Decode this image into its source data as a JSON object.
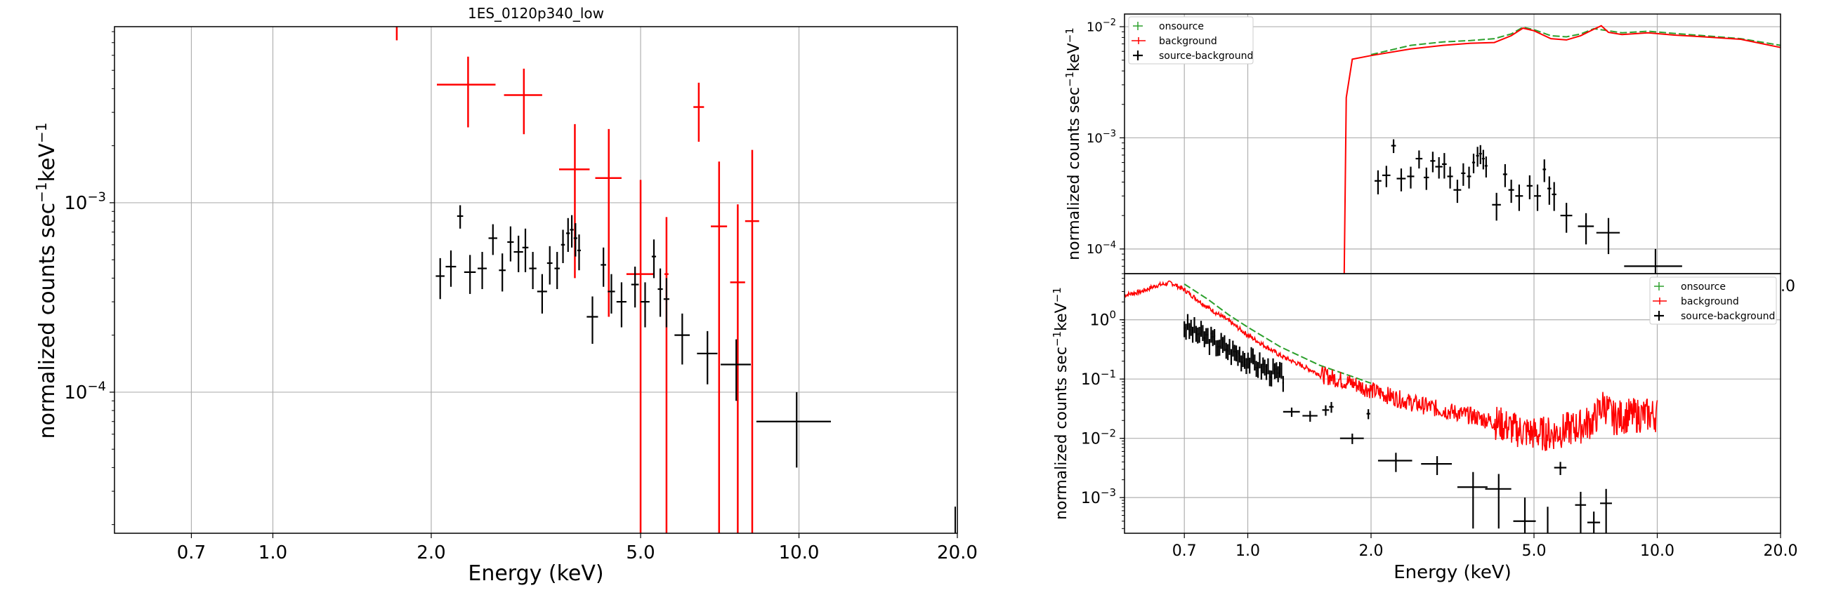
{
  "colors": {
    "source": "#000000",
    "background": "#ff0000",
    "onsource": "#2ca02c",
    "grid": "#b0b0b0"
  },
  "chart_data": [
    {
      "type": "scatter",
      "title": "1ES_0120p340_low",
      "xlabel": "Energy (keV)",
      "ylabel": "normalized counts sec$^{-1}$keV$^{-1}$",
      "ylabel_main": "normalized counts sec",
      "ylabel_sup1": "−1",
      "ylabel_mid": "keV",
      "ylabel_sup2": "−1",
      "xscale": "log",
      "yscale": "log",
      "xlim": [
        0.5,
        20.0
      ],
      "ylim": [
        1.8e-05,
        0.0085
      ],
      "xticks": [
        0.7,
        1.0,
        2.0,
        5.0,
        10.0,
        20.0
      ],
      "xtick_labels": [
        "0.7",
        "1.0",
        "2.0",
        "5.0",
        "10.0",
        "20.0"
      ],
      "yticks": [
        0.001,
        0.0001
      ],
      "ytick_base": "10",
      "ytick_exps": [
        "−3",
        "−4"
      ],
      "grid": true,
      "series": [
        {
          "color": "black",
          "points": [
            {
              "x": 2.08,
              "xerr": 0.04,
              "y": 0.00041,
              "yerr": 0.0001
            },
            {
              "x": 2.18,
              "xerr": 0.05,
              "y": 0.00046,
              "yerr": 0.0001
            },
            {
              "x": 2.27,
              "xerr": 0.03,
              "y": 0.00085,
              "yerr": 0.00012
            },
            {
              "x": 2.37,
              "xerr": 0.06,
              "y": 0.00043,
              "yerr": 0.0001
            },
            {
              "x": 2.5,
              "xerr": 0.05,
              "y": 0.00045,
              "yerr": 0.0001
            },
            {
              "x": 2.62,
              "xerr": 0.05,
              "y": 0.00065,
              "yerr": 0.00012
            },
            {
              "x": 2.73,
              "xerr": 0.04,
              "y": 0.00044,
              "yerr": 0.0001
            },
            {
              "x": 2.83,
              "xerr": 0.04,
              "y": 0.00062,
              "yerr": 0.00013
            },
            {
              "x": 2.93,
              "xerr": 0.06,
              "y": 0.00055,
              "yerr": 0.00012
            },
            {
              "x": 3.02,
              "xerr": 0.04,
              "y": 0.00058,
              "yerr": 0.00015
            },
            {
              "x": 3.12,
              "xerr": 0.05,
              "y": 0.00045,
              "yerr": 0.0001
            },
            {
              "x": 3.25,
              "xerr": 0.07,
              "y": 0.00034,
              "yerr": 8e-05
            },
            {
              "x": 3.36,
              "xerr": 0.04,
              "y": 0.00048,
              "yerr": 0.00011
            },
            {
              "x": 3.47,
              "xerr": 0.04,
              "y": 0.00045,
              "yerr": 0.0001
            },
            {
              "x": 3.56,
              "xerr": 0.03,
              "y": 0.0006,
              "yerr": 0.00012
            },
            {
              "x": 3.64,
              "xerr": 0.03,
              "y": 0.00069,
              "yerr": 0.00014
            },
            {
              "x": 3.7,
              "xerr": 0.03,
              "y": 0.00072,
              "yerr": 0.00014
            },
            {
              "x": 3.76,
              "xerr": 0.03,
              "y": 0.00065,
              "yerr": 0.00013
            },
            {
              "x": 3.82,
              "xerr": 0.03,
              "y": 0.00056,
              "yerr": 0.00012
            },
            {
              "x": 4.05,
              "xerr": 0.1,
              "y": 0.00025,
              "yerr": 7e-05
            },
            {
              "x": 4.25,
              "xerr": 0.05,
              "y": 0.00047,
              "yerr": 0.00011
            },
            {
              "x": 4.4,
              "xerr": 0.07,
              "y": 0.00034,
              "yerr": 8e-05
            },
            {
              "x": 4.6,
              "xerr": 0.1,
              "y": 0.0003,
              "yerr": 8e-05
            },
            {
              "x": 4.88,
              "xerr": 0.08,
              "y": 0.00037,
              "yerr": 9e-05
            },
            {
              "x": 5.1,
              "xerr": 0.1,
              "y": 0.0003,
              "yerr": 8e-05
            },
            {
              "x": 5.3,
              "xerr": 0.05,
              "y": 0.00052,
              "yerr": 0.00012
            },
            {
              "x": 5.45,
              "xerr": 0.06,
              "y": 0.00035,
              "yerr": 0.0001
            },
            {
              "x": 5.6,
              "xerr": 0.07,
              "y": 0.00031,
              "yerr": 9e-05
            },
            {
              "x": 6.0,
              "xerr": 0.2,
              "y": 0.0002,
              "yerr": 6e-05
            },
            {
              "x": 6.7,
              "xerr": 0.3,
              "y": 0.00016,
              "yerr": 5e-05
            },
            {
              "x": 7.6,
              "xerr": 0.5,
              "y": 0.00014,
              "yerr": 5e-05
            },
            {
              "x": 9.9,
              "xerr": 1.6,
              "y": 7e-05,
              "yerr": 3e-05
            }
          ]
        },
        {
          "color": "red",
          "points": [
            {
              "x": 1.72,
              "xerr": 0.0,
              "y": 0.0085,
              "yerr": 0.0013
            },
            {
              "x": 2.35,
              "xerr": 0.3,
              "y": 0.0042,
              "yerr": 0.0017
            },
            {
              "x": 3.0,
              "xerr": 0.25,
              "y": 0.0037,
              "yerr": 0.0014
            },
            {
              "x": 3.75,
              "xerr": 0.25,
              "y": 0.0015,
              "yerr": 0.0011
            },
            {
              "x": 4.35,
              "xerr": 0.25,
              "y": 0.00135,
              "yerr": 0.0011
            },
            {
              "x": 5.0,
              "xerr": 0.3,
              "y": 0.00042,
              "yerr": 0.0009
            },
            {
              "x": 5.6,
              "xerr": 0.05,
              "y": 0.00042,
              "yerr": 0.00042
            },
            {
              "x": 6.45,
              "xerr": 0.15,
              "y": 0.0032,
              "yerr": 0.0011
            },
            {
              "x": 7.05,
              "xerr": 0.25,
              "y": 0.00075,
              "yerr": 0.0009
            },
            {
              "x": 7.65,
              "xerr": 0.25,
              "y": 0.00038,
              "yerr": 0.0006
            },
            {
              "x": 8.15,
              "xerr": 0.25,
              "y": 0.0008,
              "yerr": 0.0011
            }
          ]
        }
      ]
    },
    {
      "type": "scatter",
      "ylabel_main": "normalized counts sec",
      "ylabel_sup1": "−1",
      "ylabel_mid": "keV",
      "ylabel_sup2": "−1",
      "xscale": "log",
      "yscale": "log",
      "xlim": [
        0.5,
        20.0
      ],
      "ylim": [
        6e-05,
        0.013
      ],
      "yticks": [
        0.01,
        0.001,
        0.0001
      ],
      "ytick_base": "10",
      "ytick_exps": [
        "−2",
        "−3",
        "−4"
      ],
      "corner_label": ".0",
      "grid": true,
      "legend": [
        "onsource",
        "background",
        "source-background"
      ],
      "legend_loc": "upper left"
    },
    {
      "type": "scatter",
      "xlabel": "Energy (keV)",
      "ylabel_main": "normalized counts sec",
      "ylabel_sup1": "−1",
      "ylabel_mid": "keV",
      "ylabel_sup2": "−1",
      "xscale": "log",
      "yscale": "log",
      "xlim": [
        0.5,
        20.0
      ],
      "ylim": [
        0.00025,
        6.0
      ],
      "xticks": [
        0.7,
        1.0,
        2.0,
        5.0,
        10.0,
        20.0
      ],
      "xtick_labels": [
        "0.7",
        "1.0",
        "2.0",
        "5.0",
        "10.0",
        "20.0"
      ],
      "yticks": [
        1.0,
        0.1,
        0.01,
        0.001
      ],
      "ytick_base": "10",
      "ytick_exps": [
        "0",
        "−1",
        "−2",
        "−3"
      ],
      "grid": true,
      "legend": [
        "onsource",
        "background",
        "source-background"
      ],
      "legend_loc": "upper right",
      "source_points": [
        {
          "x": 1.28,
          "xerr": 0.06,
          "y": 0.028,
          "yerr": 0.005
        },
        {
          "x": 1.42,
          "xerr": 0.06,
          "y": 0.024,
          "yerr": 0.005
        },
        {
          "x": 1.55,
          "xerr": 0.03,
          "y": 0.03,
          "yerr": 0.006
        },
        {
          "x": 1.6,
          "xerr": 0.02,
          "y": 0.034,
          "yerr": 0.007
        },
        {
          "x": 1.97,
          "xerr": 0.02,
          "y": 0.026,
          "yerr": 0.005
        },
        {
          "x": 1.8,
          "xerr": 0.12,
          "y": 0.01,
          "yerr": 0.002
        },
        {
          "x": 2.3,
          "xerr": 0.22,
          "y": 0.0042,
          "yerr": 0.0015
        },
        {
          "x": 2.9,
          "xerr": 0.25,
          "y": 0.0037,
          "yerr": 0.0013
        },
        {
          "x": 3.55,
          "xerr": 0.3,
          "y": 0.0015,
          "yerr": 0.0012
        },
        {
          "x": 4.1,
          "xerr": 0.3,
          "y": 0.0014,
          "yerr": 0.0011
        },
        {
          "x": 4.75,
          "xerr": 0.3,
          "y": 0.0004,
          "yerr": 0.0006
        },
        {
          "x": 5.4,
          "xerr": 0.02,
          "y": 0.0004,
          "yerr": 0.0003
        },
        {
          "x": 5.8,
          "xerr": 0.2,
          "y": 0.0032,
          "yerr": 0.0008
        },
        {
          "x": 6.5,
          "xerr": 0.2,
          "y": 0.00075,
          "yerr": 0.0005
        },
        {
          "x": 7.0,
          "xerr": 0.25,
          "y": 0.00038,
          "yerr": 0.0002
        },
        {
          "x": 7.5,
          "xerr": 0.25,
          "y": 0.0008,
          "yerr": 0.0006
        }
      ]
    }
  ]
}
